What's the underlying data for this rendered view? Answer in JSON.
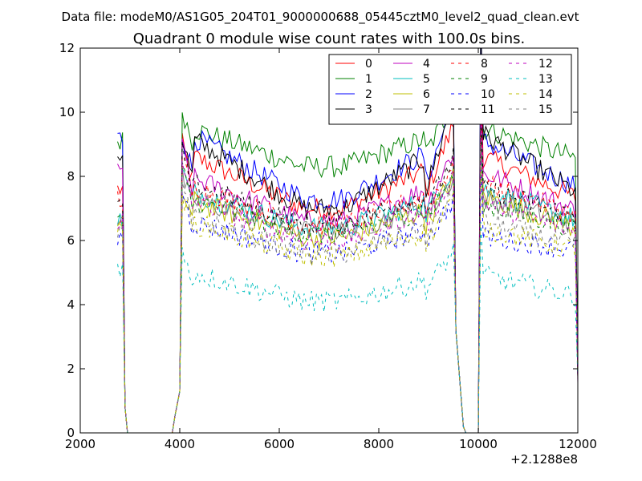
{
  "chart_data": {
    "type": "line",
    "suptitle": "Data file: modeM0/AS1G05_204T01_9000000688_05445cztM0_level2_quad_clean.evt",
    "title": "Quadrant 0 module wise count rates with 100.0s bins.",
    "xlabel": "",
    "ylabel": "",
    "x_offset_label": "+2.1288e8",
    "xlim": [
      2000,
      12000
    ],
    "ylim": [
      0,
      12
    ],
    "x_ticks": [
      2000,
      4000,
      6000,
      8000,
      10000,
      12000
    ],
    "y_ticks": [
      0,
      2,
      4,
      6,
      8,
      10,
      12
    ],
    "grid": false,
    "legend_position": "upper-right",
    "legend_columns": 4,
    "bin_seconds": 100,
    "x_start": 2750,
    "x_step": 50,
    "gaps": [
      [
        2950,
        3950
      ],
      [
        9550,
        10100
      ]
    ],
    "series": [
      {
        "name": "0",
        "color": "#ff0000",
        "style": "solid",
        "level": 7.0,
        "early": 7.6,
        "peak1": 9.0,
        "peak2": 9.2,
        "peak3": 8.6
      },
      {
        "name": "1",
        "color": "#008000",
        "style": "solid",
        "level": 8.3,
        "early": 9.1,
        "peak1": 10.1,
        "peak2": 9.9,
        "peak3": 9.5
      },
      {
        "name": "2",
        "color": "#0000ff",
        "style": "solid",
        "level": 7.3,
        "early": 9.2,
        "peak1": 9.3,
        "peak2": 9.9,
        "peak3": 9.1
      },
      {
        "name": "3",
        "color": "#000000",
        "style": "solid",
        "level": 7.0,
        "early": 8.7,
        "peak1": 9.2,
        "peak2": 9.9,
        "peak3": 9.3
      },
      {
        "name": "4",
        "color": "#bf00bf",
        "style": "solid",
        "level": 6.6,
        "early": 8.3,
        "peak1": 8.9,
        "peak2": 8.4,
        "peak3": 8.1
      },
      {
        "name": "5",
        "color": "#00bfbf",
        "style": "solid",
        "level": 6.4,
        "early": 6.6,
        "peak1": 8.2,
        "peak2": 7.9,
        "peak3": 7.6
      },
      {
        "name": "6",
        "color": "#bfbf00",
        "style": "solid",
        "level": 6.1,
        "early": 6.3,
        "peak1": 7.5,
        "peak2": 7.6,
        "peak3": 7.4
      },
      {
        "name": "7",
        "color": "#808080",
        "style": "solid",
        "level": 6.3,
        "early": 6.7,
        "peak1": 8.0,
        "peak2": 7.6,
        "peak3": 7.3
      },
      {
        "name": "8",
        "color": "#ff0000",
        "style": "dashed",
        "level": 6.5,
        "early": 7.3,
        "peak1": 8.6,
        "peak2": 8.1,
        "peak3": 7.8
      },
      {
        "name": "9",
        "color": "#008000",
        "style": "dashed",
        "level": 6.2,
        "early": 6.8,
        "peak1": 8.2,
        "peak2": 7.6,
        "peak3": 7.1
      },
      {
        "name": "10",
        "color": "#0000ff",
        "style": "dashed",
        "level": 5.6,
        "early": 6.1,
        "peak1": 7.6,
        "peak2": 6.9,
        "peak3": 6.1
      },
      {
        "name": "11",
        "color": "#000000",
        "style": "dashed",
        "level": 6.5,
        "early": 7.1,
        "peak1": 8.8,
        "peak2": 8.2,
        "peak3": 7.6
      },
      {
        "name": "12",
        "color": "#bf00bf",
        "style": "dashed",
        "level": 6.0,
        "early": 6.6,
        "peak1": 8.3,
        "peak2": 7.7,
        "peak3": 7.2
      },
      {
        "name": "13",
        "color": "#00bfbf",
        "style": "dashed",
        "level": 4.1,
        "early": 5.2,
        "peak1": 5.6,
        "peak2": 5.3,
        "peak3": 4.9
      },
      {
        "name": "14",
        "color": "#bfbf00",
        "style": "dashed",
        "level": 5.5,
        "early": 6.3,
        "peak1": 7.5,
        "peak2": 6.9,
        "peak3": 6.4
      },
      {
        "name": "15",
        "color": "#808080",
        "style": "dashed",
        "level": 5.6,
        "early": 6.2,
        "peak1": 7.7,
        "peak2": 7.1,
        "peak3": 6.6
      }
    ]
  }
}
